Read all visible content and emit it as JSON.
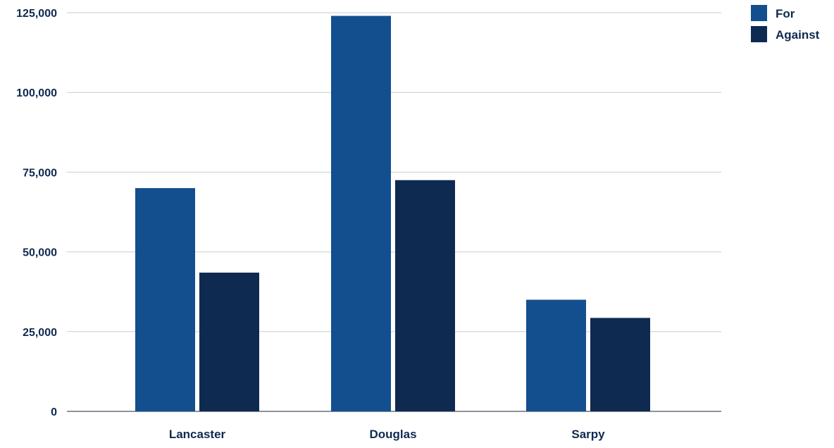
{
  "chart_data": {
    "type": "bar",
    "title": "",
    "xlabel": "",
    "ylabel": "",
    "categories": [
      "Lancaster",
      "Douglas",
      "Sarpy"
    ],
    "series": [
      {
        "name": "For",
        "color": "#134f8f",
        "values": [
          70000,
          124000,
          35000
        ]
      },
      {
        "name": "Against",
        "color": "#0f2a50",
        "values": [
          43500,
          72500,
          29300
        ]
      }
    ],
    "ylim": [
      0,
      125000
    ],
    "yticks": [
      0,
      25000,
      50000,
      75000,
      100000,
      125000
    ],
    "ytick_labels": [
      "0",
      "25,000",
      "50,000",
      "75,000",
      "100,000",
      "125,000"
    ],
    "grid": true,
    "legend_position": "top-right"
  }
}
